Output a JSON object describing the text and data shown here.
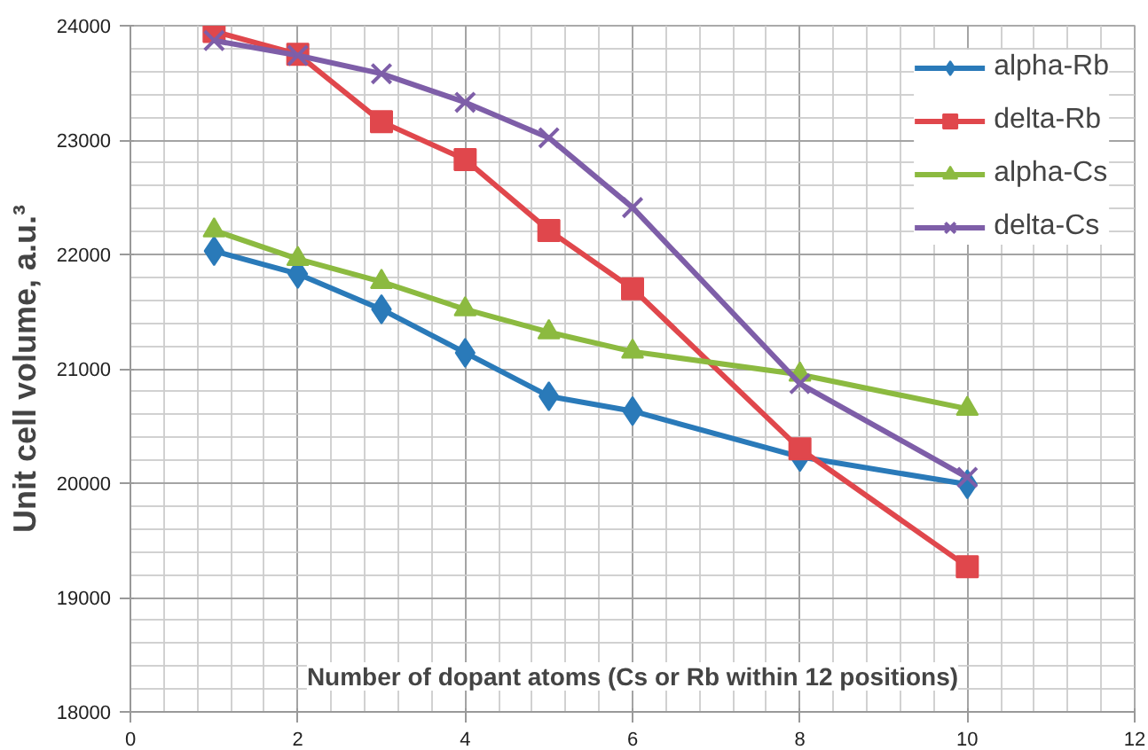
{
  "chart_data": {
    "type": "line",
    "xlabel": "Number of dopant atoms (Cs or Rb within 12 positions)",
    "ylabel": "Unit cell volume, a.u.³",
    "x": [
      1,
      2,
      3,
      4,
      5,
      6,
      8,
      10
    ],
    "series": [
      {
        "name": "alpha-Rb",
        "color": "#2a7ab9",
        "marker": "diamond",
        "values": [
          22030,
          21830,
          21520,
          21140,
          20760,
          20630,
          20230,
          19990
        ]
      },
      {
        "name": "delta-Rb",
        "color": "#e0474c",
        "marker": "square",
        "values": [
          23950,
          23750,
          23160,
          22830,
          22210,
          21700,
          20300,
          19270
        ]
      },
      {
        "name": "alpha-Cs",
        "color": "#8cba40",
        "marker": "triangle",
        "values": [
          22210,
          21960,
          21760,
          21520,
          21320,
          21150,
          20950,
          20650
        ]
      },
      {
        "name": "delta-Cs",
        "color": "#7e5ea8",
        "marker": "cross",
        "values": [
          23870,
          23740,
          23580,
          23330,
          23020,
          22410,
          20870,
          20050
        ]
      }
    ],
    "xlim": [
      0,
      12
    ],
    "xticks": [
      0,
      2,
      4,
      6,
      8,
      10,
      12
    ],
    "ylim": [
      18000,
      24000
    ],
    "yticks": [
      18000,
      19000,
      20000,
      21000,
      22000,
      23000,
      24000
    ],
    "grid": true,
    "legend": "top right",
    "line_style": "solid"
  }
}
